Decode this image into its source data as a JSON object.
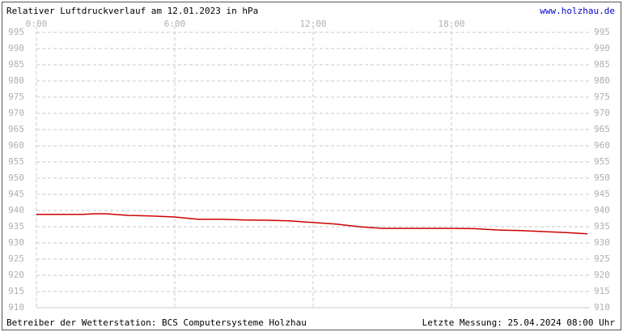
{
  "chart_data": {
    "type": "line",
    "title": "Relativer Luftdruckverlauf am 12.01.2023 in hPa",
    "link": "www.holzhau.de",
    "operator": "Betreiber der Wetterstation: BCS Computersysteme Holzhau",
    "last_measurement": "Letzte Messung: 25.04.2024 08:00 Uhr",
    "x": [
      0,
      1,
      2,
      2.5,
      3,
      4,
      5,
      6,
      7,
      8,
      9,
      10,
      11,
      12,
      13,
      14,
      15,
      16,
      17,
      18,
      19,
      20,
      21,
      22,
      23,
      23.9
    ],
    "series": [
      {
        "name": "Luftdruck",
        "color": "#cc0000",
        "values": [
          938.8,
          938.8,
          938.8,
          939.0,
          939.0,
          938.5,
          938.3,
          938.0,
          937.3,
          937.3,
          937.1,
          937.0,
          936.8,
          936.3,
          935.8,
          935.0,
          934.5,
          934.5,
          934.5,
          934.5,
          934.4,
          934.0,
          933.8,
          933.5,
          933.2,
          932.8
        ]
      }
    ],
    "xlim": [
      0,
      24
    ],
    "xticks": [
      {
        "value": 0,
        "label": "0:00"
      },
      {
        "value": 6,
        "label": "6:00"
      },
      {
        "value": 12,
        "label": "12:00"
      },
      {
        "value": 18,
        "label": "18:00"
      }
    ],
    "ylim": [
      910,
      995
    ],
    "yticks": [
      910,
      915,
      920,
      925,
      930,
      935,
      940,
      945,
      950,
      955,
      960,
      965,
      970,
      975,
      980,
      985,
      990,
      995
    ],
    "grid": true
  }
}
